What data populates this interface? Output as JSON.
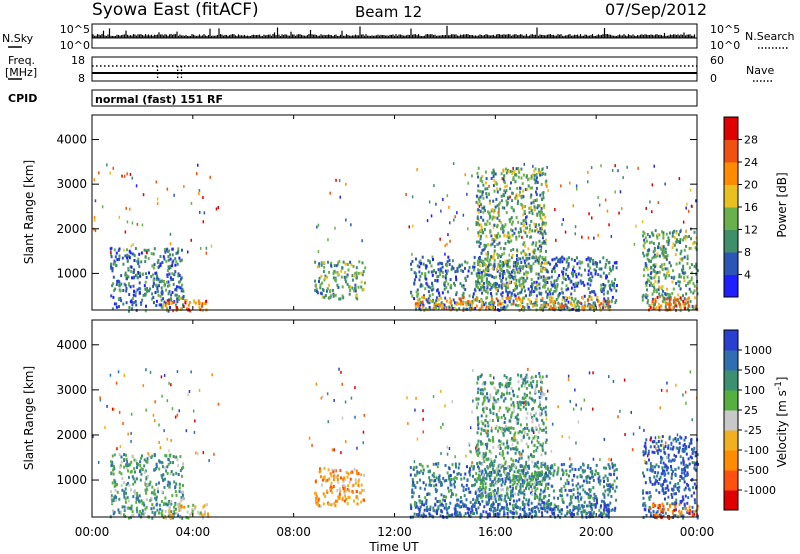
{
  "header": {
    "station": "Syowa East (fitACF)",
    "beam": "Beam 12",
    "date": "07/Sep/2012"
  },
  "nsky_panel": {
    "left_label": "N.Sky",
    "left_ticks": [
      "10^5",
      "10^0"
    ],
    "right_label": "N.Search",
    "right_ticks": [
      "10^5",
      "10^0"
    ]
  },
  "freq_panel": {
    "left_label_line1": "Freq.",
    "left_label_line2": "[MHz]",
    "left_ticks": [
      "18",
      "8"
    ],
    "right_label": "Nave",
    "right_ticks": [
      "60",
      "0"
    ]
  },
  "cpid_panel": {
    "label": "CPID",
    "text": "normal (fast) 151 RF"
  },
  "xaxis": {
    "label": "Time UT",
    "ticks": [
      "00:00",
      "04:00",
      "08:00",
      "12:00",
      "16:00",
      "20:00",
      "00:00"
    ]
  },
  "colors": {
    "power_scale": [
      "#1f1fff",
      "#2d55b8",
      "#3f8f6a",
      "#6ab04c",
      "#e8c020",
      "#ff8c00",
      "#f05010",
      "#e00000"
    ],
    "velocity_scale": [
      "#2a3fd0",
      "#2f6fb0",
      "#3a9070",
      "#55b040",
      "#c8c8c8",
      "#f0b020",
      "#ff8c00",
      "#ff5010",
      "#e00000"
    ]
  },
  "chart_data": [
    {
      "type": "heatmap",
      "title": "",
      "xlabel": "Time UT",
      "ylabel": "Slant Range [km]",
      "xlim": [
        0,
        24
      ],
      "ylim": [
        180,
        4550
      ],
      "yticks": [
        "1000",
        "2000",
        "3000",
        "4000"
      ],
      "colorbar": {
        "label": "Power [dB]",
        "ticks": [
          "4",
          "8",
          "12",
          "16",
          "20",
          "24",
          "28"
        ]
      },
      "patches": [
        {
          "t0": 0.7,
          "t1": 3.6,
          "r0": 180,
          "r1": 1600,
          "level": 3
        },
        {
          "t0": 2.8,
          "t1": 4.6,
          "r0": 180,
          "r1": 500,
          "level": 7
        },
        {
          "t0": 8.8,
          "t1": 10.8,
          "r0": 450,
          "r1": 1300,
          "level": 4
        },
        {
          "t0": 12.6,
          "t1": 20.8,
          "r0": 200,
          "r1": 1400,
          "level": 3
        },
        {
          "t0": 12.8,
          "t1": 20.5,
          "r0": 200,
          "r1": 500,
          "level": 6
        },
        {
          "t0": 15.2,
          "t1": 18.0,
          "r0": 600,
          "r1": 3400,
          "level": 4
        },
        {
          "t0": 21.8,
          "t1": 24.0,
          "r0": 180,
          "r1": 2000,
          "level": 4
        },
        {
          "t0": 22.0,
          "t1": 24.0,
          "r0": 200,
          "r1": 500,
          "level": 7
        }
      ]
    },
    {
      "type": "heatmap",
      "title": "",
      "xlabel": "Time UT",
      "ylabel": "Slant Range [km]",
      "xlim": [
        0,
        24
      ],
      "ylim": [
        180,
        4550
      ],
      "yticks": [
        "1000",
        "2000",
        "3000",
        "4000"
      ],
      "colorbar": {
        "label": "Velocity [m s^-1]",
        "ticks": [
          "1000",
          "500",
          "100",
          "25",
          "-25",
          "-100",
          "-500",
          "-1000"
        ]
      },
      "patches": [
        {
          "t0": 0.7,
          "t1": 3.6,
          "r0": 180,
          "r1": 1600,
          "level": 4
        },
        {
          "t0": 2.8,
          "t1": 4.6,
          "r0": 180,
          "r1": 500,
          "level": 6
        },
        {
          "t0": 8.8,
          "t1": 10.8,
          "r0": 450,
          "r1": 1300,
          "level": 7
        },
        {
          "t0": 12.6,
          "t1": 20.8,
          "r0": 200,
          "r1": 1400,
          "level": 3
        },
        {
          "t0": 12.8,
          "t1": 20.5,
          "r0": 200,
          "r1": 500,
          "level": 2
        },
        {
          "t0": 15.2,
          "t1": 18.0,
          "r0": 600,
          "r1": 3400,
          "level": 4
        },
        {
          "t0": 21.8,
          "t1": 24.0,
          "r0": 180,
          "r1": 2000,
          "level": 2
        },
        {
          "t0": 22.0,
          "t1": 24.0,
          "r0": 200,
          "r1": 500,
          "level": 8
        }
      ]
    }
  ]
}
